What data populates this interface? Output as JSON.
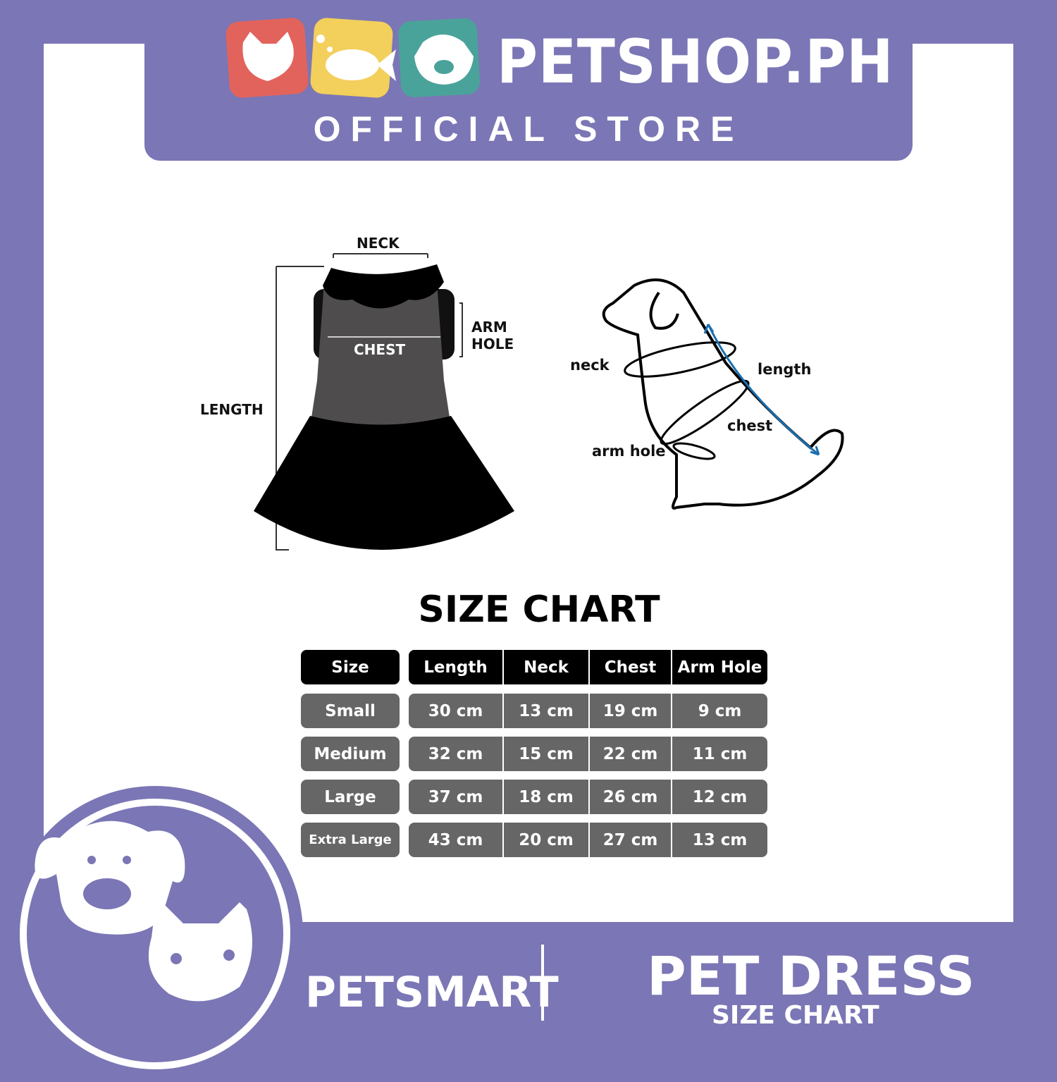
{
  "header": {
    "brand": "PETSHOP.PH",
    "tagline": "OFFICIAL STORE",
    "logo_icons": [
      "cat-icon",
      "fish-icon",
      "dog-icon"
    ],
    "tile_colors": [
      "#e2635c",
      "#f3cf5c",
      "#4aa39a"
    ]
  },
  "dress_diagram": {
    "neck": "NECK",
    "chest": "CHEST",
    "arm_hole": [
      "ARM",
      "HOLE"
    ],
    "length": "LENGTH"
  },
  "dog_diagram": {
    "neck": "neck",
    "length": "length",
    "chest": "chest",
    "arm_hole": "arm hole"
  },
  "size_chart": {
    "title": "SIZE CHART",
    "headers": [
      "Size",
      "Length",
      "Neck",
      "Chest",
      "Arm Hole"
    ],
    "rows": [
      [
        "Small",
        "30 cm",
        "13 cm",
        "19 cm",
        "9 cm"
      ],
      [
        "Medium",
        "32 cm",
        "15 cm",
        "22 cm",
        "11 cm"
      ],
      [
        "Large",
        "37 cm",
        "18 cm",
        "26 cm",
        "12 cm"
      ],
      [
        "Extra Large",
        "43 cm",
        "20 cm",
        "27 cm",
        "13 cm"
      ]
    ]
  },
  "footer": {
    "brand": "PETSMART",
    "product": "PET DRESS",
    "subtitle": "SIZE CHART"
  },
  "colors": {
    "purple": "#7b76b5",
    "header_cell": "#000000",
    "body_cell": "#666666",
    "arrow": "#1a6fb0"
  }
}
